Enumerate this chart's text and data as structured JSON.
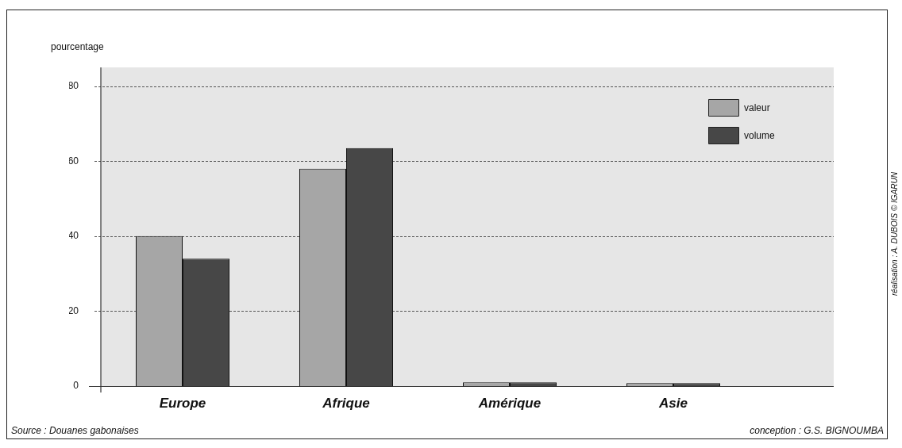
{
  "chart_data": {
    "type": "bar",
    "ylabel": "pourcentage",
    "categories": [
      "Europe",
      "Afrique",
      "Amérique",
      "Asie"
    ],
    "series": [
      {
        "name": "valeur",
        "color": "#a6a6a6",
        "values": [
          40,
          58,
          1,
          0.8
        ]
      },
      {
        "name": "volume",
        "color": "#474747",
        "values": [
          34,
          63.5,
          1,
          0.8
        ]
      }
    ],
    "ylim": [
      0,
      85
    ],
    "yticks": [
      0,
      20,
      40,
      60,
      80
    ],
    "grid": "y",
    "legend": "top right",
    "annotations": [
      "Source : Douanes gabonaises",
      "conception : G.S. BIGNOUMBA",
      "réalisation : A. DUBOIS © IGARUN"
    ]
  }
}
